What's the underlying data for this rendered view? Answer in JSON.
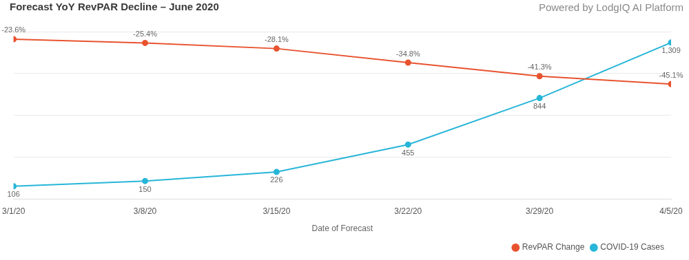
{
  "chart_data": {
    "type": "line",
    "title": "Forecast YoY RevPAR Decline – June 2020",
    "subtitle": "Powered by LodgIQ AI Platform",
    "x_label": "Date of Forecast",
    "categories": [
      "3/1/20",
      "3/8/20",
      "3/15/20",
      "3/22/20",
      "3/29/20",
      "4/5/20"
    ],
    "series": [
      {
        "name": "RevPAR Change",
        "color": "#e8532f",
        "marker": "circle",
        "values": [
          -23.6,
          -25.4,
          -28.1,
          -34.8,
          -41.3,
          -45.1
        ],
        "value_labels": [
          "-23.6%",
          "-25.4%",
          "-28.1%",
          "-34.8%",
          "-41.3%",
          "-45.1%"
        ]
      },
      {
        "name": "COVID-19 Cases",
        "color": "#27b5d8",
        "marker": "circle",
        "axis": "y2",
        "values": [
          106,
          150,
          226,
          455,
          844,
          1309
        ],
        "value_labels": [
          "106",
          "150",
          "226",
          "455",
          "844",
          "1,309"
        ]
      }
    ],
    "ylim": [
      -100,
      -20
    ],
    "yticks": [
      -100,
      -80,
      -60,
      -40,
      -20
    ],
    "y2lim": [
      0,
      1400
    ],
    "y2ticks": [
      0,
      350,
      700,
      1050,
      1400
    ],
    "grid": true,
    "legend": "bottom-right",
    "data_labels": true,
    "tick_labels": "x"
  }
}
